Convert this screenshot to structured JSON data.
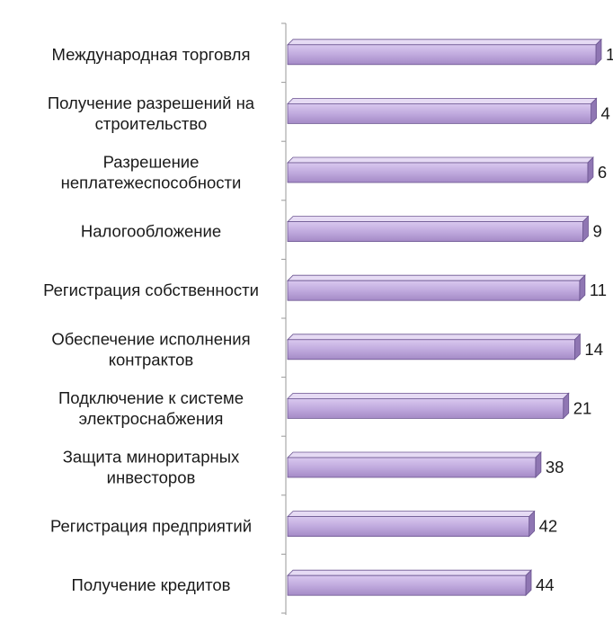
{
  "chart_data": {
    "type": "bar",
    "orientation": "horizontal",
    "categories": [
      [
        "Международная торговля"
      ],
      [
        "Получение разрешений на",
        "строительство"
      ],
      [
        "Разрешение",
        "неплатежеспособности"
      ],
      [
        "Налогообложение"
      ],
      [
        "Регистрация собственности"
      ],
      [
        "Обеспечение исполнения",
        "контрактов"
      ],
      [
        "Подключение к системе",
        "электроснабжения"
      ],
      [
        "Защита миноритарных",
        "инвесторов"
      ],
      [
        "Регистрация предприятий"
      ],
      [
        "Получение кредитов"
      ]
    ],
    "values": [
      1,
      4,
      6,
      9,
      11,
      14,
      21,
      38,
      42,
      44
    ],
    "value_labels": [
      "1",
      "4",
      "6",
      "9",
      "11",
      "14",
      "21",
      "38",
      "42",
      "44"
    ],
    "axis": "reversed",
    "title": "",
    "xlabel": "",
    "ylabel": "",
    "grid": false,
    "legend": "none",
    "colors": {
      "bar_fill_light": "#d9c8ef",
      "bar_fill_dark": "#a48ac6",
      "bar_edge": "#6b5590",
      "axis": "#9a9a9a",
      "text": "#1a1a1a"
    }
  }
}
